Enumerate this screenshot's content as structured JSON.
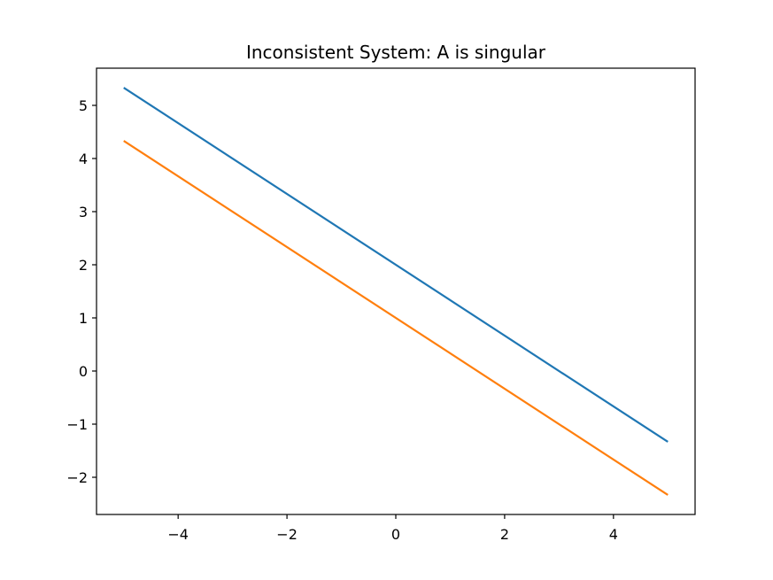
{
  "chart_data": {
    "type": "line",
    "title": "Inconsistent System: A is singular",
    "xlabel": "",
    "ylabel": "",
    "xlim": [
      -5.5,
      5.5
    ],
    "ylim": [
      -2.7,
      5.7
    ],
    "xticks": [
      -4,
      -2,
      0,
      2,
      4
    ],
    "xtick_labels": [
      "−4",
      "−2",
      "0",
      "2",
      "4"
    ],
    "yticks": [
      -2,
      -1,
      0,
      1,
      2,
      3,
      4,
      5
    ],
    "ytick_labels": [
      "−2",
      "−1",
      "0",
      "1",
      "2",
      "3",
      "4",
      "5"
    ],
    "grid": false,
    "legend": false,
    "series": [
      {
        "x": [
          -5,
          5
        ],
        "y": [
          5.333,
          -1.333
        ],
        "color": "#1f77b4"
      },
      {
        "x": [
          -5,
          5
        ],
        "y": [
          4.333,
          -2.333
        ],
        "color": "#ff7f0e"
      }
    ]
  }
}
